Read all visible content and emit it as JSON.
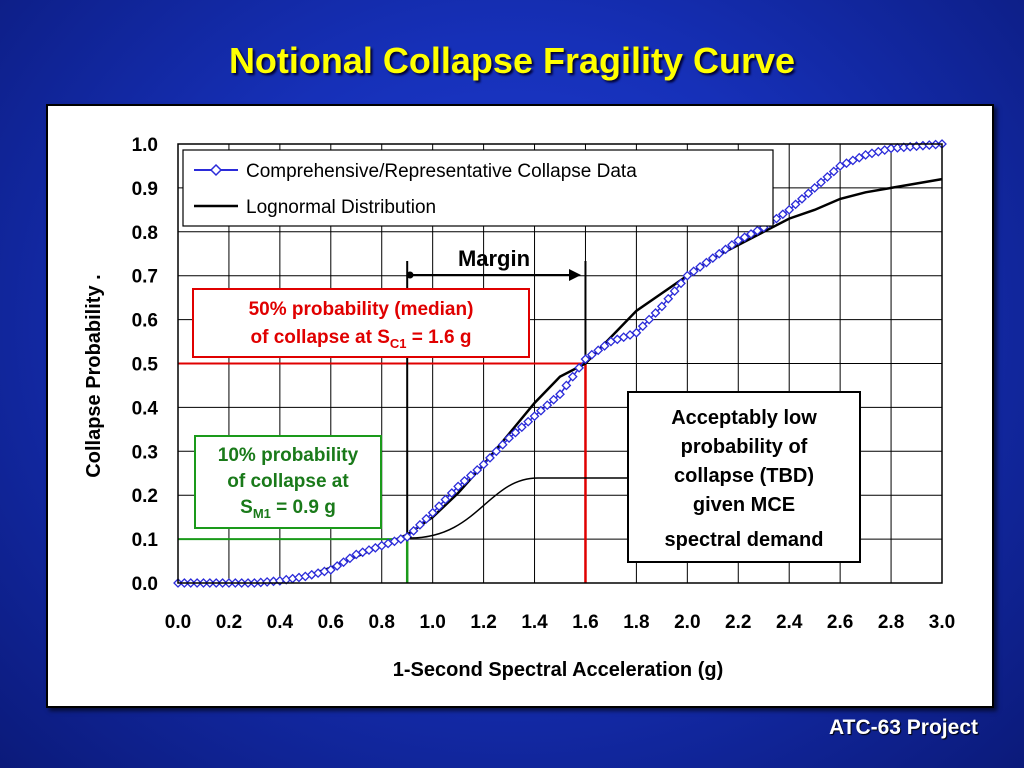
{
  "slide": {
    "title": "Notional Collapse Fragility Curve",
    "footer": "ATC-63 Project"
  },
  "colors": {
    "background": "#1630b8",
    "title": "#ffff00",
    "data_series": "#2b2bd9",
    "lognormal": "#000000",
    "median_marker": "#e00000",
    "mce_marker": "#1a9a1a"
  },
  "chart_data": {
    "type": "line",
    "xlabel": "1-Second Spectral Acceleration (g)",
    "ylabel": "Collapse Probability .",
    "xlim": [
      0,
      3.0
    ],
    "ylim": [
      0,
      1.0
    ],
    "x_ticks": [
      0.0,
      0.2,
      0.4,
      0.6,
      0.8,
      1.0,
      1.2,
      1.4,
      1.6,
      1.8,
      2.0,
      2.2,
      2.4,
      2.6,
      2.8,
      3.0
    ],
    "y_ticks": [
      0.0,
      0.1,
      0.2,
      0.3,
      0.4,
      0.5,
      0.6,
      0.7,
      0.8,
      0.9,
      1.0
    ],
    "x_tick_labels": [
      "0.0",
      "0.2",
      "0.4",
      "0.6",
      "0.8",
      "1.0",
      "1.2",
      "1.4",
      "1.6",
      "1.8",
      "2.0",
      "2.2",
      "2.4",
      "2.6",
      "2.8",
      "3.0"
    ],
    "y_tick_labels": [
      "0.0",
      "0.1",
      "0.2",
      "0.3",
      "0.4",
      "0.5",
      "0.6",
      "0.7",
      "0.8",
      "0.9",
      "1.0"
    ],
    "grid": true,
    "legend_position": "top-left",
    "series": [
      {
        "name": "Comprehensive/Representative Collapse Data",
        "marker": "diamond",
        "x": [
          0.0,
          0.1,
          0.2,
          0.3,
          0.4,
          0.5,
          0.6,
          0.7,
          0.8,
          0.9,
          1.0,
          1.1,
          1.2,
          1.3,
          1.4,
          1.5,
          1.6,
          1.7,
          1.8,
          1.9,
          2.0,
          2.1,
          2.2,
          2.3,
          2.4,
          2.5,
          2.6,
          2.7,
          2.8,
          2.9,
          3.0
        ],
        "y": [
          0.0,
          0.0,
          0.0,
          0.0,
          0.005,
          0.015,
          0.03,
          0.065,
          0.085,
          0.105,
          0.16,
          0.22,
          0.27,
          0.33,
          0.38,
          0.43,
          0.51,
          0.55,
          0.57,
          0.63,
          0.7,
          0.74,
          0.78,
          0.81,
          0.85,
          0.9,
          0.95,
          0.975,
          0.99,
          0.995,
          1.0
        ]
      },
      {
        "name": "Lognormal Distribution",
        "marker": "none",
        "x": [
          0.0,
          0.1,
          0.2,
          0.3,
          0.4,
          0.5,
          0.6,
          0.7,
          0.8,
          0.9,
          1.0,
          1.1,
          1.2,
          1.3,
          1.4,
          1.5,
          1.6,
          1.7,
          1.8,
          1.9,
          2.0,
          2.1,
          2.2,
          2.3,
          2.4,
          2.5,
          2.6,
          2.7,
          2.8,
          2.9,
          3.0
        ],
        "y": [
          0.0,
          0.0,
          0.0,
          0.0,
          0.005,
          0.015,
          0.035,
          0.06,
          0.085,
          0.11,
          0.15,
          0.205,
          0.27,
          0.34,
          0.41,
          0.47,
          0.5,
          0.56,
          0.62,
          0.66,
          0.7,
          0.74,
          0.77,
          0.8,
          0.83,
          0.85,
          0.875,
          0.89,
          0.9,
          0.91,
          0.92
        ]
      }
    ],
    "annotations": {
      "margin_label": "Margin",
      "median_line1": "50% probability (median)",
      "median_line2_prefix": "of collapse at S",
      "median_line2_sub": "C1",
      "median_line2_suffix": " = 1.6 g",
      "mce_line1": "10% probability",
      "mce_line2": "of collapse at",
      "mce_line3_prefix": "S",
      "mce_line3_sub": "M1",
      "mce_line3_suffix": " = 0.9 g",
      "callout_lines": [
        "Acceptably low",
        "probability of",
        "collapse (TBD)",
        "given MCE",
        "spectral demand"
      ]
    },
    "markers": {
      "median_x": 1.6,
      "median_y": 0.5,
      "mce_x": 0.9,
      "mce_y": 0.1
    }
  }
}
